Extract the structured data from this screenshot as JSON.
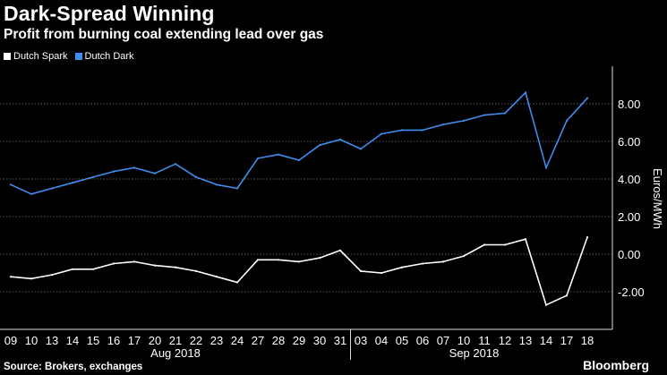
{
  "header": {
    "title": "Dark-Spread Winning",
    "subtitle": "Profit from burning coal extending lead over gas"
  },
  "footer": {
    "source": "Source: Brokers, exchanges",
    "brand": "Bloomberg"
  },
  "chart_data": {
    "type": "line",
    "title": "Dark-Spread Winning",
    "subtitle": "Profit from burning coal extending lead over gas",
    "ylabel": "Euros/MWh",
    "ylim": [
      -4,
      10
    ],
    "yticks": [
      -2,
      0,
      2,
      4,
      6,
      8
    ],
    "ytick_labels": [
      "-2.00",
      "0.00",
      "2.00",
      "4.00",
      "6.00",
      "8.00"
    ],
    "grid": true,
    "legend_position": "top-left",
    "x": [
      "09",
      "10",
      "13",
      "14",
      "15",
      "16",
      "17",
      "20",
      "21",
      "22",
      "23",
      "24",
      "27",
      "28",
      "29",
      "30",
      "31",
      "03",
      "04",
      "05",
      "06",
      "07",
      "10",
      "11",
      "12",
      "13",
      "14",
      "17",
      "18"
    ],
    "x_groups": [
      {
        "label": "Aug 2018",
        "start": "09",
        "end": "31"
      },
      {
        "label": "Sep 2018",
        "start": "03",
        "end": "18"
      }
    ],
    "series": [
      {
        "name": "Dutch Spark",
        "color": "#ffffff",
        "values": [
          -1.2,
          -1.3,
          -1.1,
          -0.8,
          -0.8,
          -0.5,
          -0.4,
          -0.6,
          -0.7,
          -0.9,
          -1.2,
          -1.5,
          -0.3,
          -0.3,
          -0.4,
          -0.2,
          0.2,
          -0.9,
          -1.0,
          -0.7,
          -0.5,
          -0.4,
          -0.1,
          0.5,
          0.5,
          0.8,
          -2.7,
          -2.2,
          0.9
        ]
      },
      {
        "name": "Dutch Dark",
        "color": "#3f8eef",
        "values": [
          3.7,
          3.2,
          3.5,
          3.8,
          4.1,
          4.4,
          4.6,
          4.3,
          4.8,
          4.1,
          3.7,
          3.5,
          5.1,
          5.3,
          5.0,
          5.8,
          6.1,
          5.6,
          6.4,
          6.6,
          6.6,
          6.9,
          7.1,
          7.4,
          7.5,
          8.6,
          4.6,
          7.1,
          8.3
        ]
      }
    ]
  }
}
